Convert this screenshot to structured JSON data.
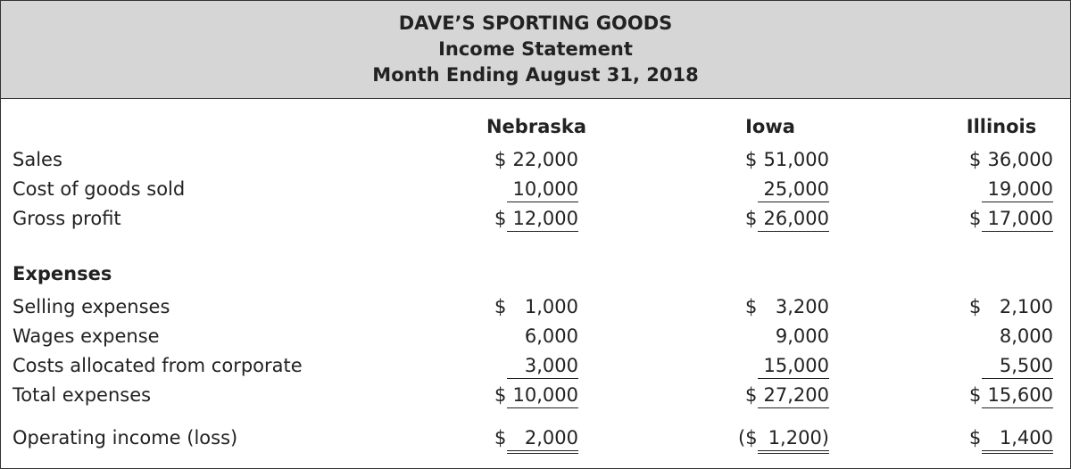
{
  "header": {
    "company": "DAVE’S SPORTING GOODS",
    "statement": "Income Statement",
    "period": "Month Ending August 31, 2018"
  },
  "columns": [
    "Nebraska",
    "Iowa",
    "Illinois"
  ],
  "rows": [
    {
      "label": "Sales",
      "values": [
        {
          "d": "$",
          "v": "22,000"
        },
        {
          "d": "$",
          "v": "51,000"
        },
        {
          "d": "$",
          "v": "36,000"
        }
      ]
    },
    {
      "label": "Cost of goods sold",
      "values": [
        {
          "d": "",
          "v": "10,000"
        },
        {
          "d": "",
          "v": "25,000"
        },
        {
          "d": "",
          "v": "19,000"
        }
      ]
    },
    {
      "label": "Gross profit",
      "values": [
        {
          "d": "$",
          "v": "12,000"
        },
        {
          "d": "$",
          "v": "26,000"
        },
        {
          "d": "$",
          "v": "17,000"
        }
      ]
    },
    {
      "label": "Expenses"
    },
    {
      "label": "Selling expenses",
      "values": [
        {
          "d": "$",
          "v": "1,000"
        },
        {
          "d": "$",
          "v": "3,200"
        },
        {
          "d": "$",
          "v": "2,100"
        }
      ]
    },
    {
      "label": "Wages expense",
      "values": [
        {
          "d": "",
          "v": "6,000"
        },
        {
          "d": "",
          "v": "9,000"
        },
        {
          "d": "",
          "v": "8,000"
        }
      ]
    },
    {
      "label": "Costs allocated from corporate",
      "values": [
        {
          "d": "",
          "v": "3,000"
        },
        {
          "d": "",
          "v": "15,000"
        },
        {
          "d": "",
          "v": "5,500"
        }
      ]
    },
    {
      "label": "Total expenses",
      "values": [
        {
          "d": "$",
          "v": "10,000"
        },
        {
          "d": "$",
          "v": "27,200"
        },
        {
          "d": "$",
          "v": "15,600"
        }
      ]
    },
    {
      "label": "Operating income (loss)",
      "values": [
        {
          "d": "$",
          "v": "2,000"
        },
        {
          "d": "($",
          "v": "1,200)"
        },
        {
          "d": "$",
          "v": "1,400"
        }
      ]
    }
  ]
}
